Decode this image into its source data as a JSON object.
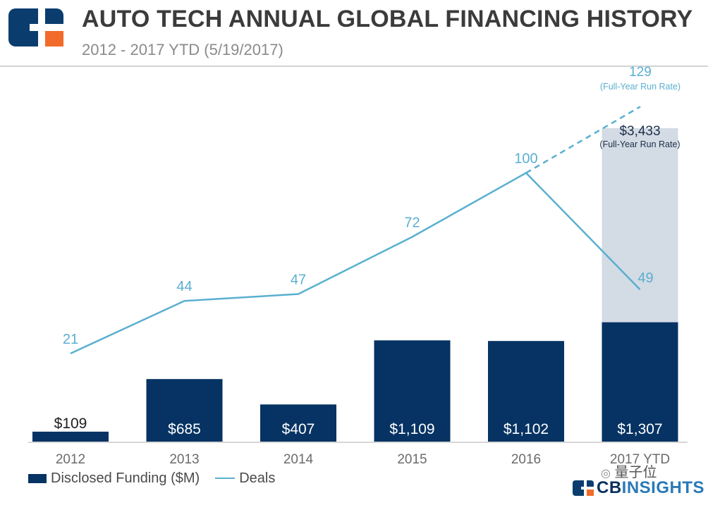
{
  "header": {
    "title": "AUTO TECH ANNUAL GLOBAL FINANCING HISTORY",
    "subtitle": "2012 - 2017 YTD (5/19/2017)"
  },
  "colors": {
    "bar": "#063363",
    "bar_projection": "#d3dbe4",
    "line": "#5aafd0",
    "logo_blue": "#0a3d6e",
    "logo_orange": "#f26b2a"
  },
  "legend": {
    "funding_label": "Disclosed Funding ($M)",
    "deals_label": "Deals"
  },
  "watermark": "量子位",
  "brand": {
    "cb": "CB",
    "insights": "INSIGHTS"
  },
  "chart_data": {
    "type": "bar",
    "title": "AUTO TECH ANNUAL GLOBAL FINANCING HISTORY",
    "subtitle": "2012 - 2017 YTD (5/19/2017)",
    "categories": [
      "2012",
      "2013",
      "2014",
      "2015",
      "2016",
      "2017 YTD"
    ],
    "series": [
      {
        "name": "Disclosed Funding ($M)",
        "type": "bar",
        "values": [
          109,
          685,
          407,
          1109,
          1102,
          1307
        ],
        "labels": [
          "$109",
          "$685",
          "$407",
          "$1,109",
          "$1,102",
          "$1,307"
        ]
      },
      {
        "name": "Deals",
        "type": "line",
        "values": [
          21,
          44,
          47,
          72,
          100,
          49
        ],
        "labels": [
          "21",
          "44",
          "47",
          "72",
          "100",
          "49"
        ]
      }
    ],
    "projection": {
      "funding_value": 3433,
      "funding_label": "$3,433",
      "funding_note": "(Full-Year Run Rate)",
      "deals_value": 129,
      "deals_label": "129",
      "deals_note": "(Full-Year Run Rate)"
    },
    "funding_axis": [
      0,
      3600
    ],
    "deals_axis": [
      0,
      160
    ]
  }
}
